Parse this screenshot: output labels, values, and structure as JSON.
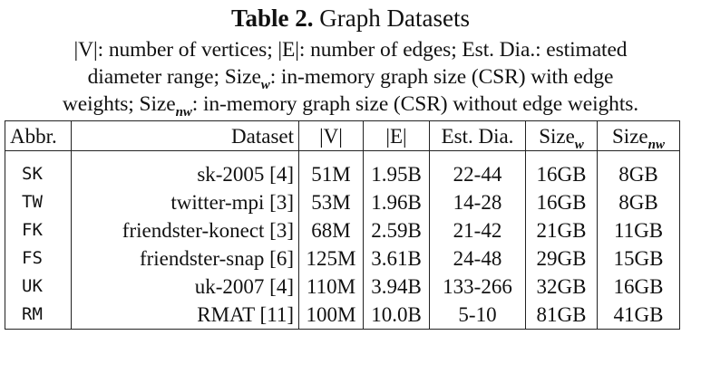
{
  "caption": {
    "label": "Table 2.",
    "title": "Graph Datasets",
    "desc_line1": "|V|: number of vertices; |E|: number of edges; Est. Dia.: estimated",
    "desc_line2_a": "diameter range; Size",
    "desc_line2_sub": "w",
    "desc_line2_b": ": in-memory graph size (CSR) with edge",
    "desc_line3_a": "weights; Size",
    "desc_line3_sub": "nw",
    "desc_line3_b": ": in-memory graph size (CSR) without edge weights."
  },
  "table": {
    "headers": {
      "abbr": "Abbr.",
      "dataset": "Dataset",
      "v": "|V|",
      "e": "|E|",
      "dia": "Est. Dia.",
      "size_w_base": "Size",
      "size_w_sub": "w",
      "size_nw_base": "Size",
      "size_nw_sub": "nw"
    },
    "rows": [
      {
        "abbr": "SK",
        "dataset": "sk-2005 [4]",
        "v": "51M",
        "e": "1.95B",
        "dia": "22-44",
        "size_w": "16GB",
        "size_nw": "8GB"
      },
      {
        "abbr": "TW",
        "dataset": "twitter-mpi [3]",
        "v": "53M",
        "e": "1.96B",
        "dia": "14-28",
        "size_w": "16GB",
        "size_nw": "8GB"
      },
      {
        "abbr": "FK",
        "dataset": "friendster-konect [3]",
        "v": "68M",
        "e": "2.59B",
        "dia": "21-42",
        "size_w": "21GB",
        "size_nw": "11GB"
      },
      {
        "abbr": "FS",
        "dataset": "friendster-snap [6]",
        "v": "125M",
        "e": "3.61B",
        "dia": "24-48",
        "size_w": "29GB",
        "size_nw": "15GB"
      },
      {
        "abbr": "UK",
        "dataset": "uk-2007 [4]",
        "v": "110M",
        "e": "3.94B",
        "dia": "133-266",
        "size_w": "32GB",
        "size_nw": "16GB"
      },
      {
        "abbr": "RM",
        "dataset": "RMAT [11]",
        "v": "100M",
        "e": "10.0B",
        "dia": "5-10",
        "size_w": "81GB",
        "size_nw": "41GB"
      }
    ]
  }
}
